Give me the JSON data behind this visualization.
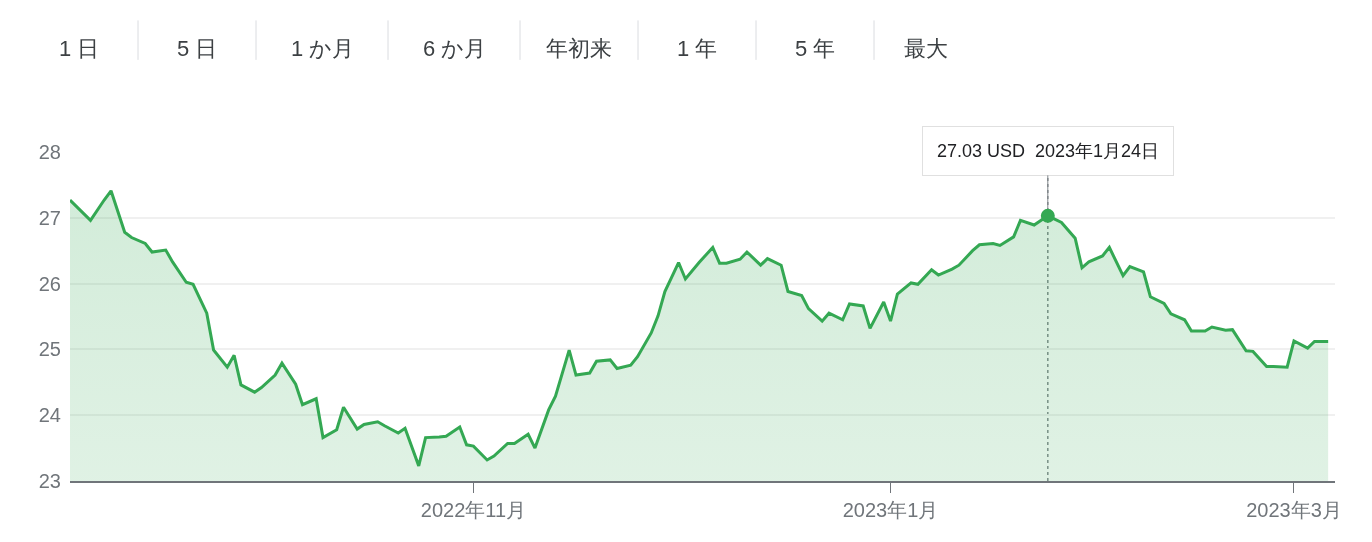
{
  "chart_data": {
    "type": "area",
    "annotations": [
      "1 日",
      "5 日",
      "1 か月",
      "6 か月",
      "年初来",
      "1 年",
      "5 年",
      "最大",
      {
        "text": "27.03 USD  2023年1月24日",
        "x": "2023-01-24",
        "y": 27.03
      }
    ],
    "x": [
      "2022-09-03",
      "2022-09-06",
      "2022-09-08",
      "2022-09-09",
      "2022-09-11",
      "2022-09-12",
      "2022-09-14",
      "2022-09-15",
      "2022-09-17",
      "2022-09-18",
      "2022-09-20",
      "2022-09-21",
      "2022-09-23",
      "2022-09-24",
      "2022-09-26",
      "2022-09-27",
      "2022-09-28",
      "2022-09-30",
      "2022-10-01",
      "2022-10-03",
      "2022-10-04",
      "2022-10-06",
      "2022-10-07",
      "2022-10-09",
      "2022-10-10",
      "2022-10-12",
      "2022-10-13",
      "2022-10-15",
      "2022-10-16",
      "2022-10-18",
      "2022-10-19",
      "2022-10-21",
      "2022-10-22",
      "2022-10-24",
      "2022-10-25",
      "2022-10-27",
      "2022-10-28",
      "2022-10-30",
      "2022-10-31",
      "2022-11-01",
      "2022-11-03",
      "2022-11-04",
      "2022-11-06",
      "2022-11-07",
      "2022-11-09",
      "2022-11-10",
      "2022-11-12",
      "2022-11-13",
      "2022-11-15",
      "2022-11-16",
      "2022-11-18",
      "2022-11-19",
      "2022-11-21",
      "2022-11-22",
      "2022-11-24",
      "2022-11-25",
      "2022-11-27",
      "2022-11-28",
      "2022-11-29",
      "2022-12-01",
      "2022-12-02",
      "2022-12-04",
      "2022-12-06",
      "2022-12-07",
      "2022-12-08",
      "2022-12-10",
      "2022-12-11",
      "2022-12-13",
      "2022-12-14",
      "2022-12-16",
      "2022-12-17",
      "2022-12-19",
      "2022-12-20",
      "2022-12-22",
      "2022-12-23",
      "2022-12-25",
      "2022-12-26",
      "2022-12-28",
      "2022-12-29",
      "2022-12-31",
      "2023-01-01",
      "2023-01-02",
      "2023-01-04",
      "2023-01-05",
      "2023-01-07",
      "2023-01-08",
      "2023-01-10",
      "2023-01-11",
      "2023-01-13",
      "2023-01-14",
      "2023-01-16",
      "2023-01-17",
      "2023-01-19",
      "2023-01-20",
      "2023-01-22",
      "2023-01-24",
      "2023-01-25",
      "2023-01-26",
      "2023-01-28",
      "2023-01-29",
      "2023-01-30",
      "2023-02-01",
      "2023-02-02",
      "2023-02-04",
      "2023-02-05",
      "2023-02-07",
      "2023-02-08",
      "2023-02-10",
      "2023-02-11",
      "2023-02-13",
      "2023-02-14",
      "2023-02-16",
      "2023-02-17",
      "2023-02-19",
      "2023-02-20",
      "2023-02-22",
      "2023-02-23",
      "2023-02-25",
      "2023-02-26",
      "2023-02-28",
      "2023-03-01",
      "2023-03-03",
      "2023-03-04",
      "2023-03-06"
    ],
    "series": [
      {
        "color": "#34a853",
        "values": [
          27.27,
          26.96,
          27.27,
          27.41,
          26.78,
          26.7,
          26.61,
          26.48,
          26.51,
          26.33,
          26.02,
          25.99,
          25.55,
          24.99,
          24.73,
          24.91,
          24.46,
          24.35,
          24.42,
          24.61,
          24.79,
          24.47,
          24.16,
          24.25,
          23.66,
          23.78,
          24.12,
          23.79,
          23.86,
          23.9,
          23.84,
          23.73,
          23.8,
          23.23,
          23.66,
          23.67,
          23.68,
          23.82,
          23.55,
          23.53,
          23.32,
          23.38,
          23.57,
          23.57,
          23.71,
          23.5,
          24.08,
          24.29,
          24.99,
          24.61,
          24.64,
          24.82,
          24.84,
          24.71,
          24.76,
          24.89,
          25.25,
          25.51,
          25.88,
          26.32,
          26.07,
          26.32,
          26.55,
          26.31,
          26.31,
          26.37,
          26.48,
          26.28,
          26.38,
          26.28,
          25.88,
          25.82,
          25.62,
          25.43,
          25.55,
          25.45,
          25.69,
          25.66,
          25.32,
          25.72,
          25.43,
          25.84,
          26.01,
          25.99,
          26.21,
          26.13,
          26.22,
          26.28,
          26.5,
          26.59,
          26.61,
          26.58,
          26.71,
          26.96,
          26.89,
          27.03,
          26.98,
          26.93,
          26.69,
          26.24,
          26.33,
          26.42,
          26.55,
          26.12,
          26.26,
          26.18,
          25.8,
          25.7,
          25.54,
          25.45,
          25.28,
          25.28,
          25.34,
          25.29,
          25.3,
          24.98,
          24.97,
          24.74,
          24.74,
          24.73,
          25.13,
          25.02,
          25.12,
          25.12
        ]
      }
    ],
    "xlim": [
      "2022-09-03",
      "2023-03-07"
    ],
    "xticks": [
      {
        "value": "2022-11-01",
        "label": "2022年11月"
      },
      {
        "value": "2023-01-01",
        "label": "2023年1月"
      },
      {
        "value": "2023-03-01",
        "label": "2023年3月"
      }
    ],
    "ylim": [
      23,
      28
    ],
    "yticks": [
      23,
      24,
      25,
      26,
      27,
      28
    ],
    "ref_lines": [
      {
        "axis": "x",
        "value": "2023-01-24",
        "color": "#80868b",
        "line_style": "dotted"
      }
    ],
    "grid": "y",
    "marker": "none",
    "line_style": "solid"
  }
}
